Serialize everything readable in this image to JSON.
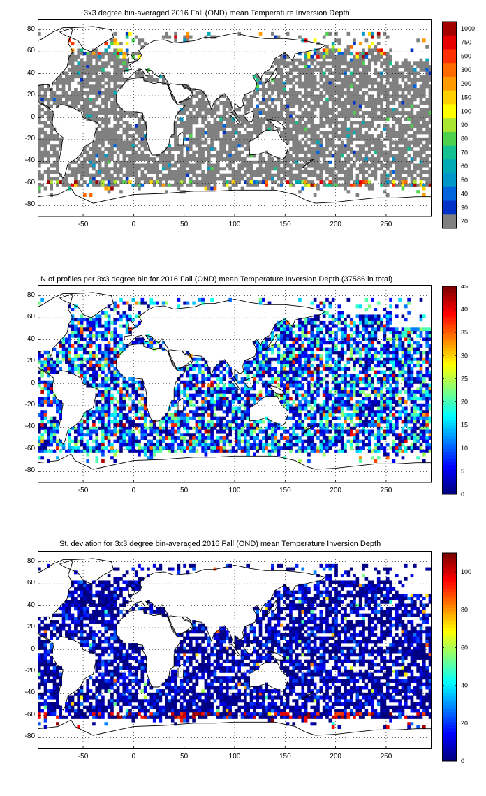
{
  "chart_data": [
    {
      "type": "heatmap",
      "title": "3x3 degree bin-averaged 2016 Fall (OND) mean Temperature Inversion Depth",
      "xlabel": "",
      "ylabel": "",
      "xlim": [
        -95,
        295
      ],
      "ylim": [
        -90,
        90
      ],
      "x_ticks": [
        -50,
        0,
        50,
        100,
        150,
        200,
        250
      ],
      "y_ticks": [
        80,
        60,
        40,
        20,
        0,
        -20,
        -40,
        -60,
        -80
      ],
      "grid": true,
      "colorbar_labels": [
        "1000",
        "750",
        "500",
        "300",
        "200",
        "150",
        "100",
        "90",
        "80",
        "70",
        "60",
        "50",
        "40",
        "30",
        "20"
      ],
      "colorbar_colors": [
        "#a50000",
        "#e60000",
        "#ff3000",
        "#ff6a00",
        "#ff9a00",
        "#ffd000",
        "#ffff00",
        "#a8e632",
        "#4ed24e",
        "#14c090",
        "#00aab4",
        "#0096c8",
        "#0064dc",
        "#0032c8",
        "#808080"
      ],
      "dominant_color": "#808080"
    },
    {
      "type": "heatmap",
      "title": "N of profiles per 3x3 degree bin for 2016 Fall (OND) mean Temperature Inversion Depth  (37586 in total)",
      "xlabel": "",
      "ylabel": "",
      "xlim": [
        -95,
        295
      ],
      "ylim": [
        -90,
        90
      ],
      "x_ticks": [
        -50,
        0,
        50,
        100,
        150,
        200,
        250
      ],
      "y_ticks": [
        80,
        60,
        40,
        20,
        0,
        -20,
        -40,
        -60,
        -80
      ],
      "grid": true,
      "colorbar_range": [
        0,
        45
      ],
      "colorbar_ticks": [
        0,
        5,
        10,
        15,
        20,
        25,
        30,
        35,
        40,
        45
      ]
    },
    {
      "type": "heatmap",
      "title": "St. deviation for 3x3 degree bin-averaged 2016 Fall (OND) mean Temperature Inversion Depth",
      "xlabel": "",
      "ylabel": "",
      "xlim": [
        -95,
        295
      ],
      "ylim": [
        -90,
        90
      ],
      "x_ticks": [
        -50,
        0,
        50,
        100,
        150,
        200,
        250
      ],
      "y_ticks": [
        80,
        60,
        40,
        20,
        0,
        -20,
        -40,
        -60,
        -80
      ],
      "grid": true,
      "colorbar_range": [
        0,
        110
      ],
      "colorbar_ticks": [
        0,
        20,
        40,
        60,
        80,
        100
      ]
    }
  ]
}
